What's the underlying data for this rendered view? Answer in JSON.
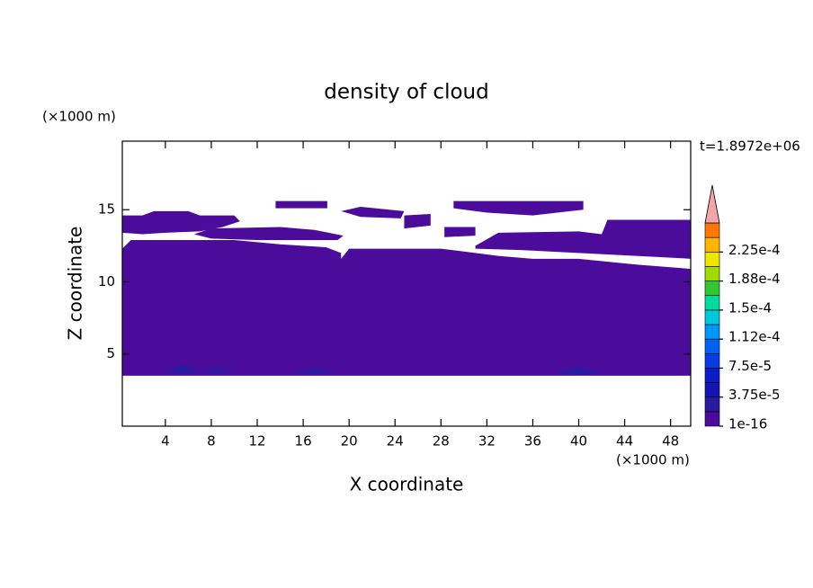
{
  "chart_data": {
    "type": "contour",
    "title": "density of cloud",
    "x_label": "X coordinate",
    "y_label": "Z coordinate",
    "x_unit": "(×1000 m)",
    "y_unit": "(×1000 m)",
    "time_label": "t=1.8972e+06",
    "xlim": [
      0.25,
      49.75
    ],
    "ylim": [
      0,
      19.75
    ],
    "xticks": [
      4,
      8,
      12,
      16,
      20,
      24,
      28,
      32,
      36,
      40,
      44,
      48
    ],
    "yticks": [
      5,
      10,
      15
    ],
    "colorbar": {
      "levels": [
        1e-16,
        1.875e-05,
        3.75e-05,
        5.625e-05,
        7.5e-05,
        9.375e-05,
        0.0001125,
        0.00013125,
        0.00015,
        0.00016875,
        0.0001875,
        0.00020625,
        0.000225,
        0.00024375
      ],
      "colors": [
        "#4b0c9c",
        "#2a1aa0",
        "#1414b0",
        "#0a1ec8",
        "#0a3ce6",
        "#0064f0",
        "#0096ff",
        "#00c8dc",
        "#00dca0",
        "#32c832",
        "#a0dc00",
        "#f0e600",
        "#ffb400",
        "#ff7800"
      ],
      "extend_color": "#f4a5a5",
      "ticks": [
        {
          "value": 1e-16,
          "label": "1e-16"
        },
        {
          "value": 3.75e-05,
          "label": "3.75e-5"
        },
        {
          "value": 7.5e-05,
          "label": "7.5e-5"
        },
        {
          "value": 0.0001125,
          "label": "1.12e-4"
        },
        {
          "value": 0.00015,
          "label": "1.5e-4"
        },
        {
          "value": 0.0001875,
          "label": "1.88e-4"
        },
        {
          "value": 0.000225,
          "label": "2.25e-4"
        }
      ]
    },
    "bands": [
      [
        {
          "x": [
            0.25,
            49.75,
            49.75,
            45,
            40,
            36,
            33,
            31,
            28,
            20,
            19.3,
            19.3,
            18,
            14,
            10,
            1,
            0.25
          ],
          "z": [
            3.5,
            3.5,
            10.9,
            11.2,
            11.6,
            11.6,
            11.8,
            12.0,
            12.3,
            12.3,
            11.6,
            12.0,
            12.4,
            12.6,
            12.9,
            12.9,
            12.3
          ]
        },
        {
          "x": [
            0.25,
            0.25,
            2,
            3,
            6,
            7,
            10,
            10.5,
            9,
            7,
            4,
            2,
            0.25
          ],
          "z": [
            13.4,
            14.6,
            14.6,
            14.9,
            14.9,
            14.6,
            14.6,
            14.2,
            13.8,
            13.5,
            13.4,
            13.3,
            13.4
          ]
        },
        {
          "x": [
            6.5,
            8,
            14,
            17,
            19.5,
            19,
            12,
            8
          ],
          "z": [
            13.3,
            13.7,
            13.8,
            13.6,
            13.2,
            12.9,
            12.9,
            13.0
          ]
        },
        {
          "x": [
            13.6,
            18.1,
            18.1,
            13.6
          ],
          "z": [
            15.1,
            15.1,
            15.6,
            15.6
          ]
        },
        {
          "x": [
            19.3,
            21,
            24.8,
            24.5,
            21
          ],
          "z": [
            14.9,
            15.2,
            14.9,
            14.4,
            14.5
          ]
        },
        {
          "x": [
            24.8,
            27.1,
            27.1,
            24.8
          ],
          "z": [
            13.7,
            13.9,
            14.7,
            14.6
          ]
        },
        {
          "x": [
            29.1,
            40.4,
            40.4,
            36,
            32,
            29.1
          ],
          "z": [
            15.6,
            15.6,
            15.0,
            14.6,
            14.8,
            15.1
          ]
        },
        {
          "x": [
            28.3,
            31,
            31,
            28.3
          ],
          "z": [
            13.1,
            13.2,
            13.8,
            13.8
          ]
        },
        {
          "x": [
            31,
            33,
            40,
            42,
            42.5,
            49.75,
            49.75,
            45,
            40,
            35,
            31
          ],
          "z": [
            12.5,
            13.4,
            13.5,
            13.3,
            14.3,
            14.3,
            11.6,
            11.8,
            12.0,
            12.2,
            12.3
          ]
        }
      ],
      [
        {
          "x": [
            4,
            5.5,
            7,
            5.5
          ],
          "z": [
            3.8,
            4.3,
            3.8,
            3.6
          ]
        },
        {
          "x": [
            7,
            8.5,
            10,
            8.5
          ],
          "z": [
            3.8,
            4.1,
            3.8,
            3.65
          ]
        },
        {
          "x": [
            15,
            17,
            19,
            17
          ],
          "z": [
            3.75,
            4.0,
            3.75,
            3.65
          ]
        },
        {
          "x": [
            38,
            40,
            42,
            40
          ],
          "z": [
            3.7,
            4.1,
            3.7,
            3.6
          ]
        }
      ]
    ]
  }
}
